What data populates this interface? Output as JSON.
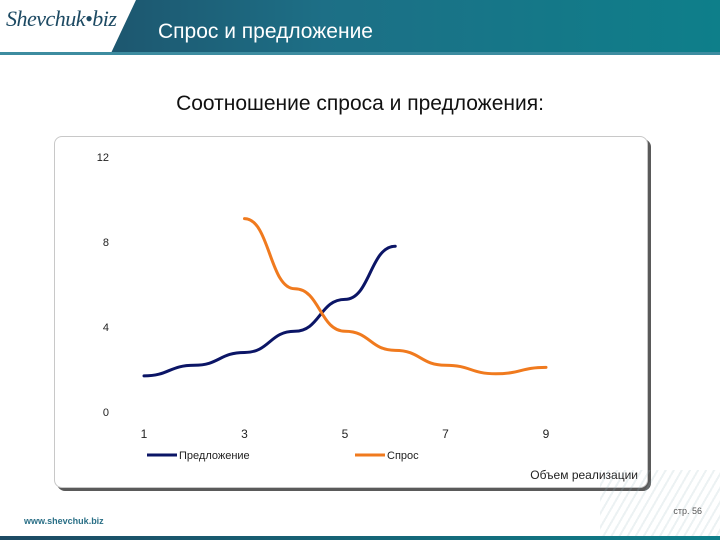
{
  "slide": {
    "logo": "Shevchuk•biz",
    "title": "Спрос и предложение",
    "heading": "Соотношение спроса и предложения:",
    "footer_url": "www.shevchuk.biz",
    "page": "стр. 56"
  },
  "colors": {
    "header": "#1d5f76",
    "supply": "#0b1566",
    "demand": "#f07a1e"
  },
  "chart_data": {
    "type": "line",
    "x_ticks": [
      "1",
      "3",
      "5",
      "7",
      "9"
    ],
    "y_ticks": [
      "0",
      "4",
      "8",
      "12"
    ],
    "ylim": [
      0,
      12
    ],
    "xlim": [
      1,
      9
    ],
    "xlabel": "Объем реализации",
    "ylabel": "",
    "grid": false,
    "legend_position": "bottom",
    "series": [
      {
        "name": "Предложение",
        "x": [
          1,
          2,
          3,
          4,
          5,
          6
        ],
        "y": [
          1.7,
          2.2,
          2.8,
          3.8,
          5.3,
          7.8
        ]
      },
      {
        "name": "Спрос",
        "x": [
          3,
          4,
          5,
          6,
          7,
          8,
          9
        ],
        "y": [
          9.1,
          5.8,
          3.8,
          2.9,
          2.2,
          1.8,
          2.1
        ]
      }
    ]
  }
}
